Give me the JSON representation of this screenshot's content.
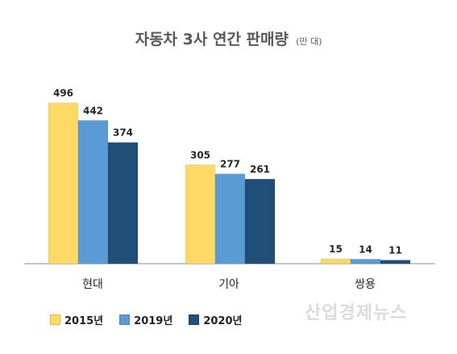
{
  "chart_data": {
    "type": "bar",
    "title": "자동차 3사 연간 판매량",
    "unit": "(만 대)",
    "categories": [
      "현대",
      "기아",
      "쌍용"
    ],
    "series": [
      {
        "name": "2015년",
        "values": [
          496,
          305,
          15
        ],
        "color": "#FFD966"
      },
      {
        "name": "2019년",
        "values": [
          442,
          277,
          14
        ],
        "color": "#5B9BD5"
      },
      {
        "name": "2020년",
        "values": [
          374,
          261,
          11
        ],
        "color": "#1F4E79"
      }
    ],
    "ylim": [
      0,
      500
    ],
    "grid": false,
    "legend_position": "bottom-left"
  },
  "watermark": "산업경제뉴스"
}
